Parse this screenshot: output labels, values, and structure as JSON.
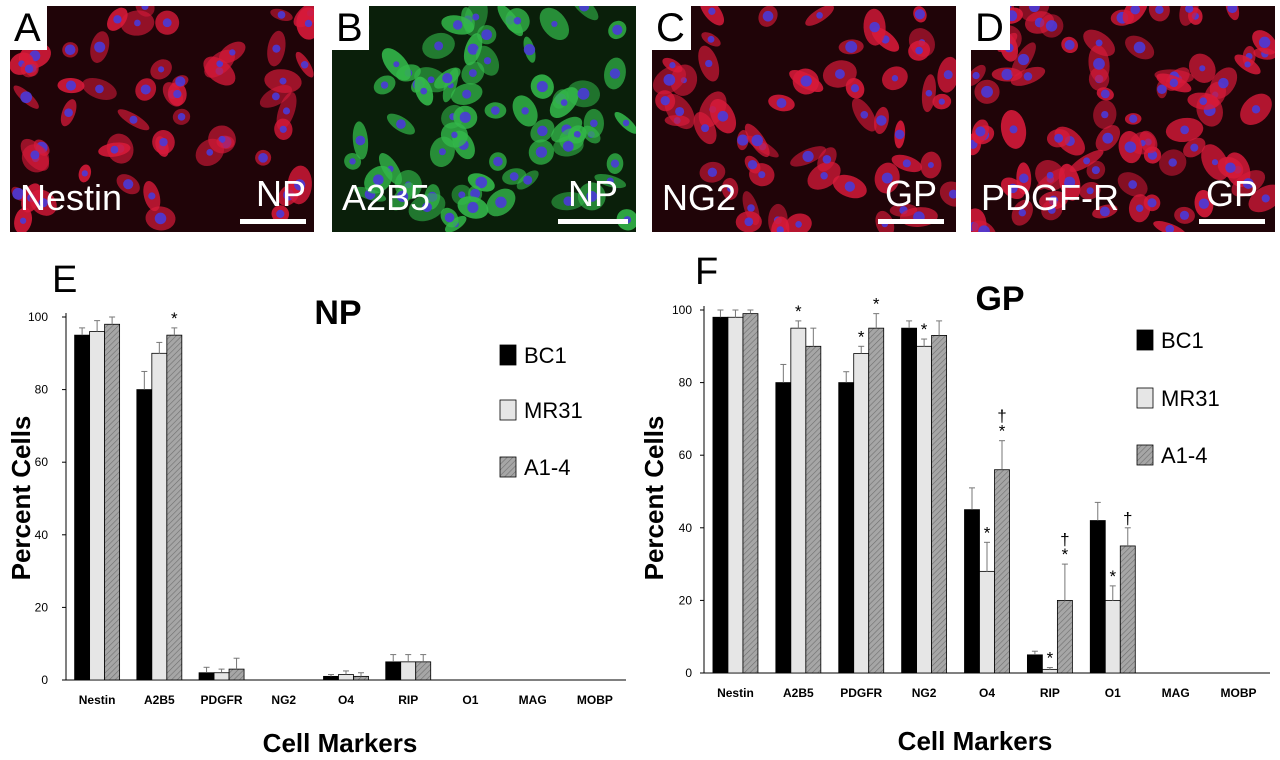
{
  "panels": [
    {
      "letter": "A",
      "marker": "Nestin",
      "group": "NP",
      "stain": "red"
    },
    {
      "letter": "B",
      "marker": "A2B5",
      "group": "NP",
      "stain": "green"
    },
    {
      "letter": "C",
      "marker": "NG2",
      "group": "GP",
      "stain": "red"
    },
    {
      "letter": "D",
      "marker": "PDGF-R",
      "group": "GP",
      "stain": "red"
    }
  ],
  "legend": {
    "series": [
      "BC1",
      "MR31",
      "A1-4"
    ]
  },
  "chart_data": [
    {
      "panel_letter": "E",
      "type": "bar",
      "title": "NP",
      "xlabel": "Cell Markers",
      "ylabel": "Percent Cells",
      "ylim": [
        0,
        100
      ],
      "yticks": [
        0,
        20,
        40,
        60,
        80,
        100
      ],
      "categories": [
        "Nestin",
        "A2B5",
        "PDGFR",
        "NG2",
        "O4",
        "RIP",
        "O1",
        "MAG",
        "MOBP"
      ],
      "series": [
        {
          "name": "BC1",
          "values": [
            95,
            80,
            2,
            0,
            1,
            5,
            0,
            0,
            0
          ],
          "errors": [
            2,
            5,
            1.5,
            0,
            0.5,
            2,
            0,
            0,
            0
          ],
          "fill": "#000000"
        },
        {
          "name": "MR31",
          "values": [
            96,
            90,
            2,
            0,
            1.5,
            5,
            0,
            0,
            0
          ],
          "errors": [
            3,
            3,
            1,
            0,
            1,
            2,
            0,
            0,
            0
          ],
          "fill": "#e6e6e6"
        },
        {
          "name": "A1-4",
          "values": [
            98,
            95,
            3,
            0,
            1,
            5,
            0,
            0,
            0
          ],
          "errors": [
            2,
            2,
            3,
            0,
            1,
            2,
            0,
            0,
            0
          ],
          "fill": "#a6a6a6"
        }
      ],
      "annotations": [
        {
          "category": "A2B5",
          "series": "A1-4",
          "text": "*"
        }
      ],
      "legend_position": "right"
    },
    {
      "panel_letter": "F",
      "type": "bar",
      "title": "GP",
      "xlabel": "Cell Markers",
      "ylabel": "Percent Cells",
      "ylim": [
        0,
        100
      ],
      "yticks": [
        0,
        20,
        40,
        60,
        80,
        100
      ],
      "categories": [
        "Nestin",
        "A2B5",
        "PDGFR",
        "NG2",
        "O4",
        "RIP",
        "O1",
        "MAG",
        "MOBP"
      ],
      "series": [
        {
          "name": "BC1",
          "values": [
            98,
            80,
            80,
            95,
            45,
            5,
            42,
            0,
            0
          ],
          "errors": [
            2,
            5,
            3,
            2,
            6,
            1,
            5,
            0,
            0
          ],
          "fill": "#000000"
        },
        {
          "name": "MR31",
          "values": [
            98,
            95,
            88,
            90,
            28,
            1,
            20,
            0,
            0
          ],
          "errors": [
            2,
            2,
            2,
            2,
            8,
            0.5,
            4,
            0,
            0
          ],
          "fill": "#e6e6e6"
        },
        {
          "name": "A1-4",
          "values": [
            99,
            90,
            95,
            93,
            56,
            20,
            35,
            0,
            0
          ],
          "errors": [
            1,
            5,
            4,
            4,
            8,
            10,
            5,
            0,
            0
          ],
          "fill": "#a6a6a6"
        }
      ],
      "annotations": [
        {
          "category": "A2B5",
          "series": "MR31",
          "text": "*"
        },
        {
          "category": "PDGFR",
          "series": "MR31",
          "text": "*"
        },
        {
          "category": "PDGFR",
          "series": "A1-4",
          "text": "*"
        },
        {
          "category": "NG2",
          "series": "MR31",
          "text": "*"
        },
        {
          "category": "O4",
          "series": "MR31",
          "text": "*"
        },
        {
          "category": "O4",
          "series": "A1-4",
          "text": "*"
        },
        {
          "category": "O4",
          "series": "A1-4",
          "text": "†"
        },
        {
          "category": "RIP",
          "series": "MR31",
          "text": "*"
        },
        {
          "category": "RIP",
          "series": "A1-4",
          "text": "*"
        },
        {
          "category": "RIP",
          "series": "A1-4",
          "text": "†"
        },
        {
          "category": "O1",
          "series": "MR31",
          "text": "*"
        },
        {
          "category": "O1",
          "series": "A1-4",
          "text": "†"
        }
      ],
      "legend_position": "right"
    }
  ]
}
